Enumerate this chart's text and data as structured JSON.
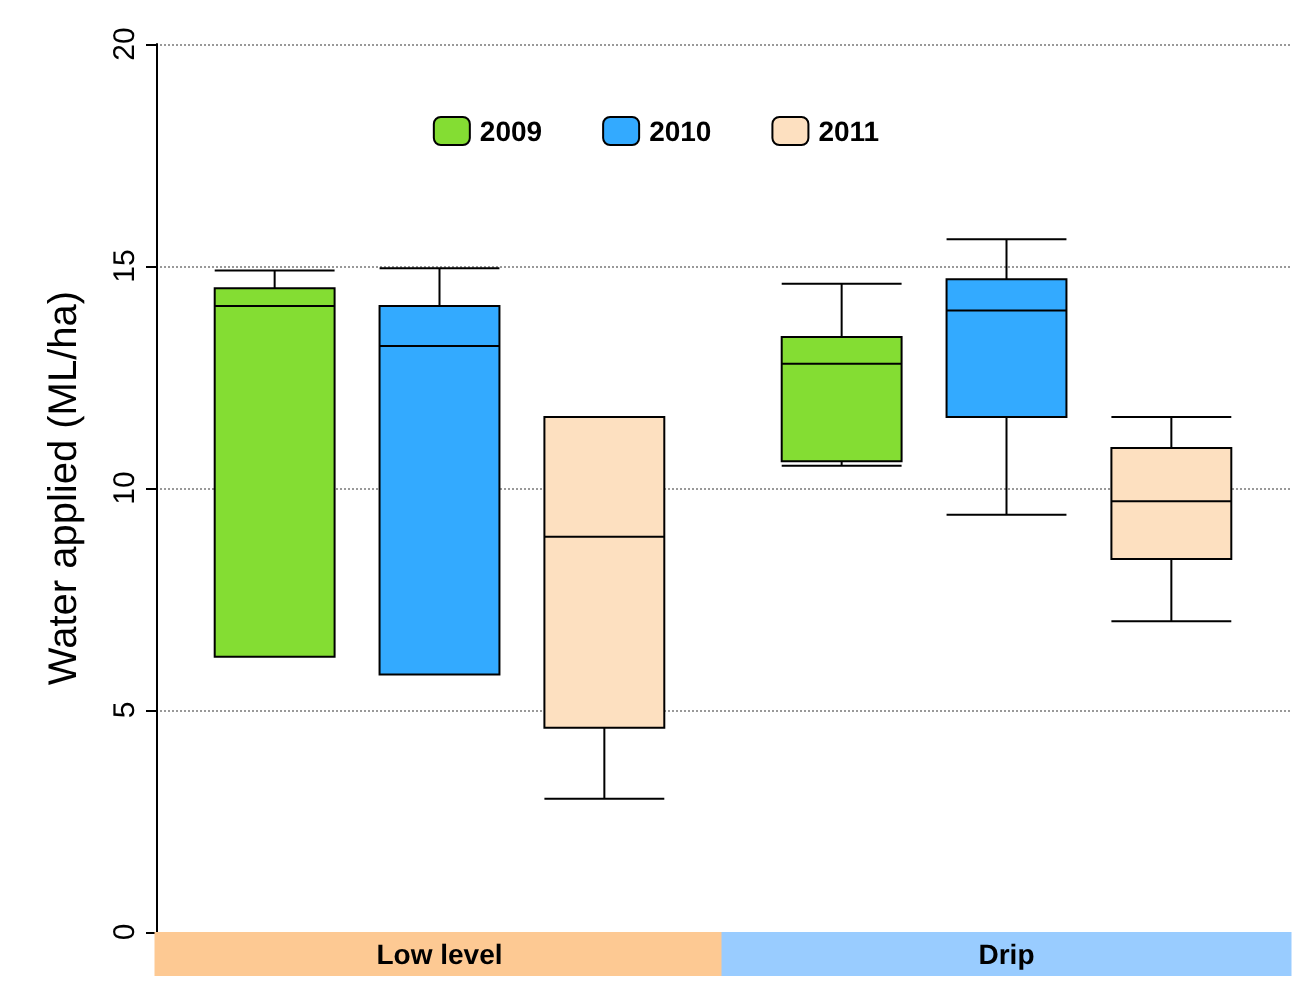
{
  "chart_data": {
    "type": "box",
    "ylabel": "Water applied (ML/ha)",
    "categories": [
      "Low level",
      "Drip"
    ],
    "ylim": [
      0,
      20
    ],
    "yticks": [
      0,
      5,
      10,
      15,
      20
    ],
    "grid": "y",
    "legend": "top",
    "series": [
      {
        "name": "2009",
        "color": "#84dd33",
        "boxes": [
          {
            "low": 6.2,
            "q1": 6.2,
            "median": 14.1,
            "q3": 14.5,
            "high": 14.9
          },
          {
            "low": 10.5,
            "q1": 10.6,
            "median": 12.8,
            "q3": 13.4,
            "high": 14.6
          }
        ]
      },
      {
        "name": "2010",
        "color": "#33aaff",
        "boxes": [
          {
            "low": 5.8,
            "q1": 5.8,
            "median": 13.2,
            "q3": 14.1,
            "high": 14.95
          },
          {
            "low": 9.4,
            "q1": 11.6,
            "median": 14.0,
            "q3": 14.7,
            "high": 15.6
          }
        ]
      },
      {
        "name": "2011",
        "color": "#fde0c0",
        "boxes": [
          {
            "low": 3.0,
            "q1": 4.6,
            "median": 8.9,
            "q3": 11.6,
            "high": 11.6
          },
          {
            "low": 7.0,
            "q1": 8.4,
            "median": 9.7,
            "q3": 10.9,
            "high": 11.6
          }
        ]
      }
    ]
  }
}
